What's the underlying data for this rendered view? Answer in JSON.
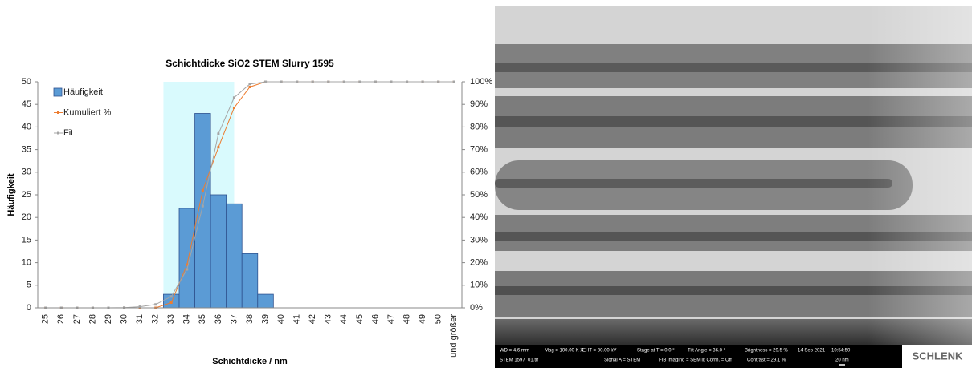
{
  "chart_data": {
    "type": "bar",
    "title": "Schichtdicke SiO2 STEM Slurry 1595",
    "xlabel": "Schichtdicke / nm",
    "ylabel": "Häufigkeit",
    "categories": [
      "25",
      "26",
      "27",
      "28",
      "29",
      "30",
      "31",
      "32",
      "33",
      "34",
      "35",
      "36",
      "37",
      "38",
      "39",
      "40",
      "41",
      "42",
      "43",
      "44",
      "45",
      "46",
      "47",
      "48",
      "49",
      "50",
      "und größer"
    ],
    "series": [
      {
        "name": "Häufigkeit",
        "type": "bar",
        "color": "#5b9bd5",
        "values": [
          0,
          0,
          0,
          0,
          0,
          0,
          0,
          0,
          3,
          22,
          43,
          25,
          23,
          12,
          3,
          0,
          0,
          0,
          0,
          0,
          0,
          0,
          0,
          0,
          0,
          0,
          0
        ]
      },
      {
        "name": "Kumuliert %",
        "type": "line",
        "axis": "y2",
        "color": "#ed7d31",
        "values": [
          0,
          0,
          0,
          0,
          0,
          0,
          0,
          0,
          2.3,
          19.1,
          51.9,
          71,
          88.5,
          97.7,
          100,
          100,
          100,
          100,
          100,
          100,
          100,
          100,
          100,
          100,
          100,
          100,
          100
        ]
      },
      {
        "name": "Fit",
        "type": "line",
        "axis": "y2",
        "color": "#a5a5a5",
        "values": [
          0,
          0,
          0,
          0,
          0,
          0.1,
          0.5,
          1.5,
          5,
          17,
          45,
          77,
          93,
          99,
          100,
          100,
          100,
          100,
          100,
          100,
          100,
          100,
          100,
          100,
          100,
          100,
          100
        ]
      }
    ],
    "highlight_color": "#d9fafd",
    "ylim": [
      0,
      50
    ],
    "yticks": [
      0,
      5,
      10,
      15,
      20,
      25,
      30,
      35,
      40,
      45,
      50
    ],
    "y2lim": [
      0,
      100
    ],
    "y2ticks": [
      {
        "value": 0,
        "label": "0%"
      },
      {
        "value": 10,
        "label": "10%"
      },
      {
        "value": 20,
        "label": "20%"
      },
      {
        "value": 30,
        "label": "30%"
      },
      {
        "value": 40,
        "label": "40%"
      },
      {
        "value": 50,
        "label": "50%"
      },
      {
        "value": 60,
        "label": "60%"
      },
      {
        "value": 70,
        "label": "70%"
      },
      {
        "value": 80,
        "label": "80%"
      },
      {
        "value": 90,
        "label": "90%"
      },
      {
        "value": 100,
        "label": "100%"
      }
    ],
    "legend": "top-left"
  },
  "image": {
    "info": [
      "WD = 4.6 mm",
      "Mag = 100.00 K X",
      "EHT = 30.00 kV",
      "Stage at T = 0.0 °",
      "Tilt Angle = 36.0 °",
      "Brightness = 29.5 %",
      "14 Sep 2021",
      "10:54:50"
    ],
    "info2": [
      "STEM 1597_01.tif",
      "Signal A = STEM",
      "FIB Imaging = SEM",
      "Tilt Corrn. = Off",
      "Contrast = 29.1 %",
      "20 nm"
    ],
    "logo": "SCHLENK"
  }
}
